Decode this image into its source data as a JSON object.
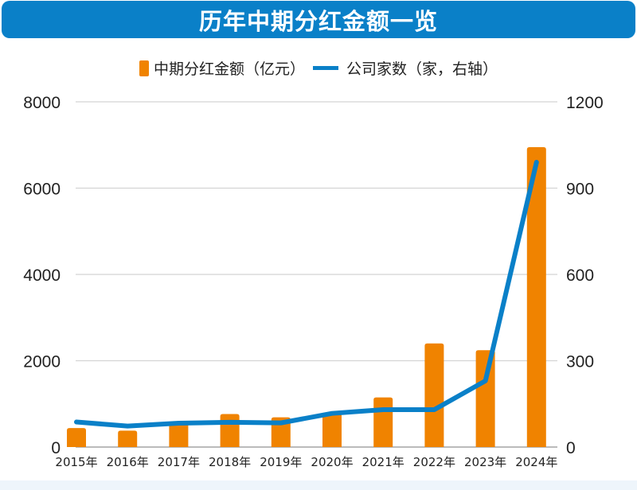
{
  "chart_data": {
    "type": "bar",
    "title": "历年中期分红金额一览",
    "categories": [
      "2015年",
      "2016年",
      "2017年",
      "2018年",
      "2019年",
      "2020年",
      "2021年",
      "2022年",
      "2023年",
      "2024年"
    ],
    "series": [
      {
        "name": "中期分红金额（亿元）",
        "type": "bar",
        "axis": "left",
        "color": "#f08300",
        "values": [
          440,
          380,
          560,
          765,
          690,
          780,
          1150,
          2400,
          2245,
          6950
        ]
      },
      {
        "name": "公司家数（家，右轴）",
        "type": "line",
        "axis": "right",
        "color": "#0a80c8",
        "values": [
          87,
          73,
          83,
          86,
          84,
          117,
          130,
          130,
          230,
          990
        ]
      }
    ],
    "ylim": [
      0,
      8000
    ],
    "y_ticks": [
      "0",
      "2000",
      "4000",
      "6000",
      "8000"
    ],
    "y2lim": [
      0,
      1200
    ],
    "y2_ticks": [
      "0",
      "300",
      "600",
      "900",
      "1200"
    ],
    "grid": true,
    "legend": "top"
  }
}
